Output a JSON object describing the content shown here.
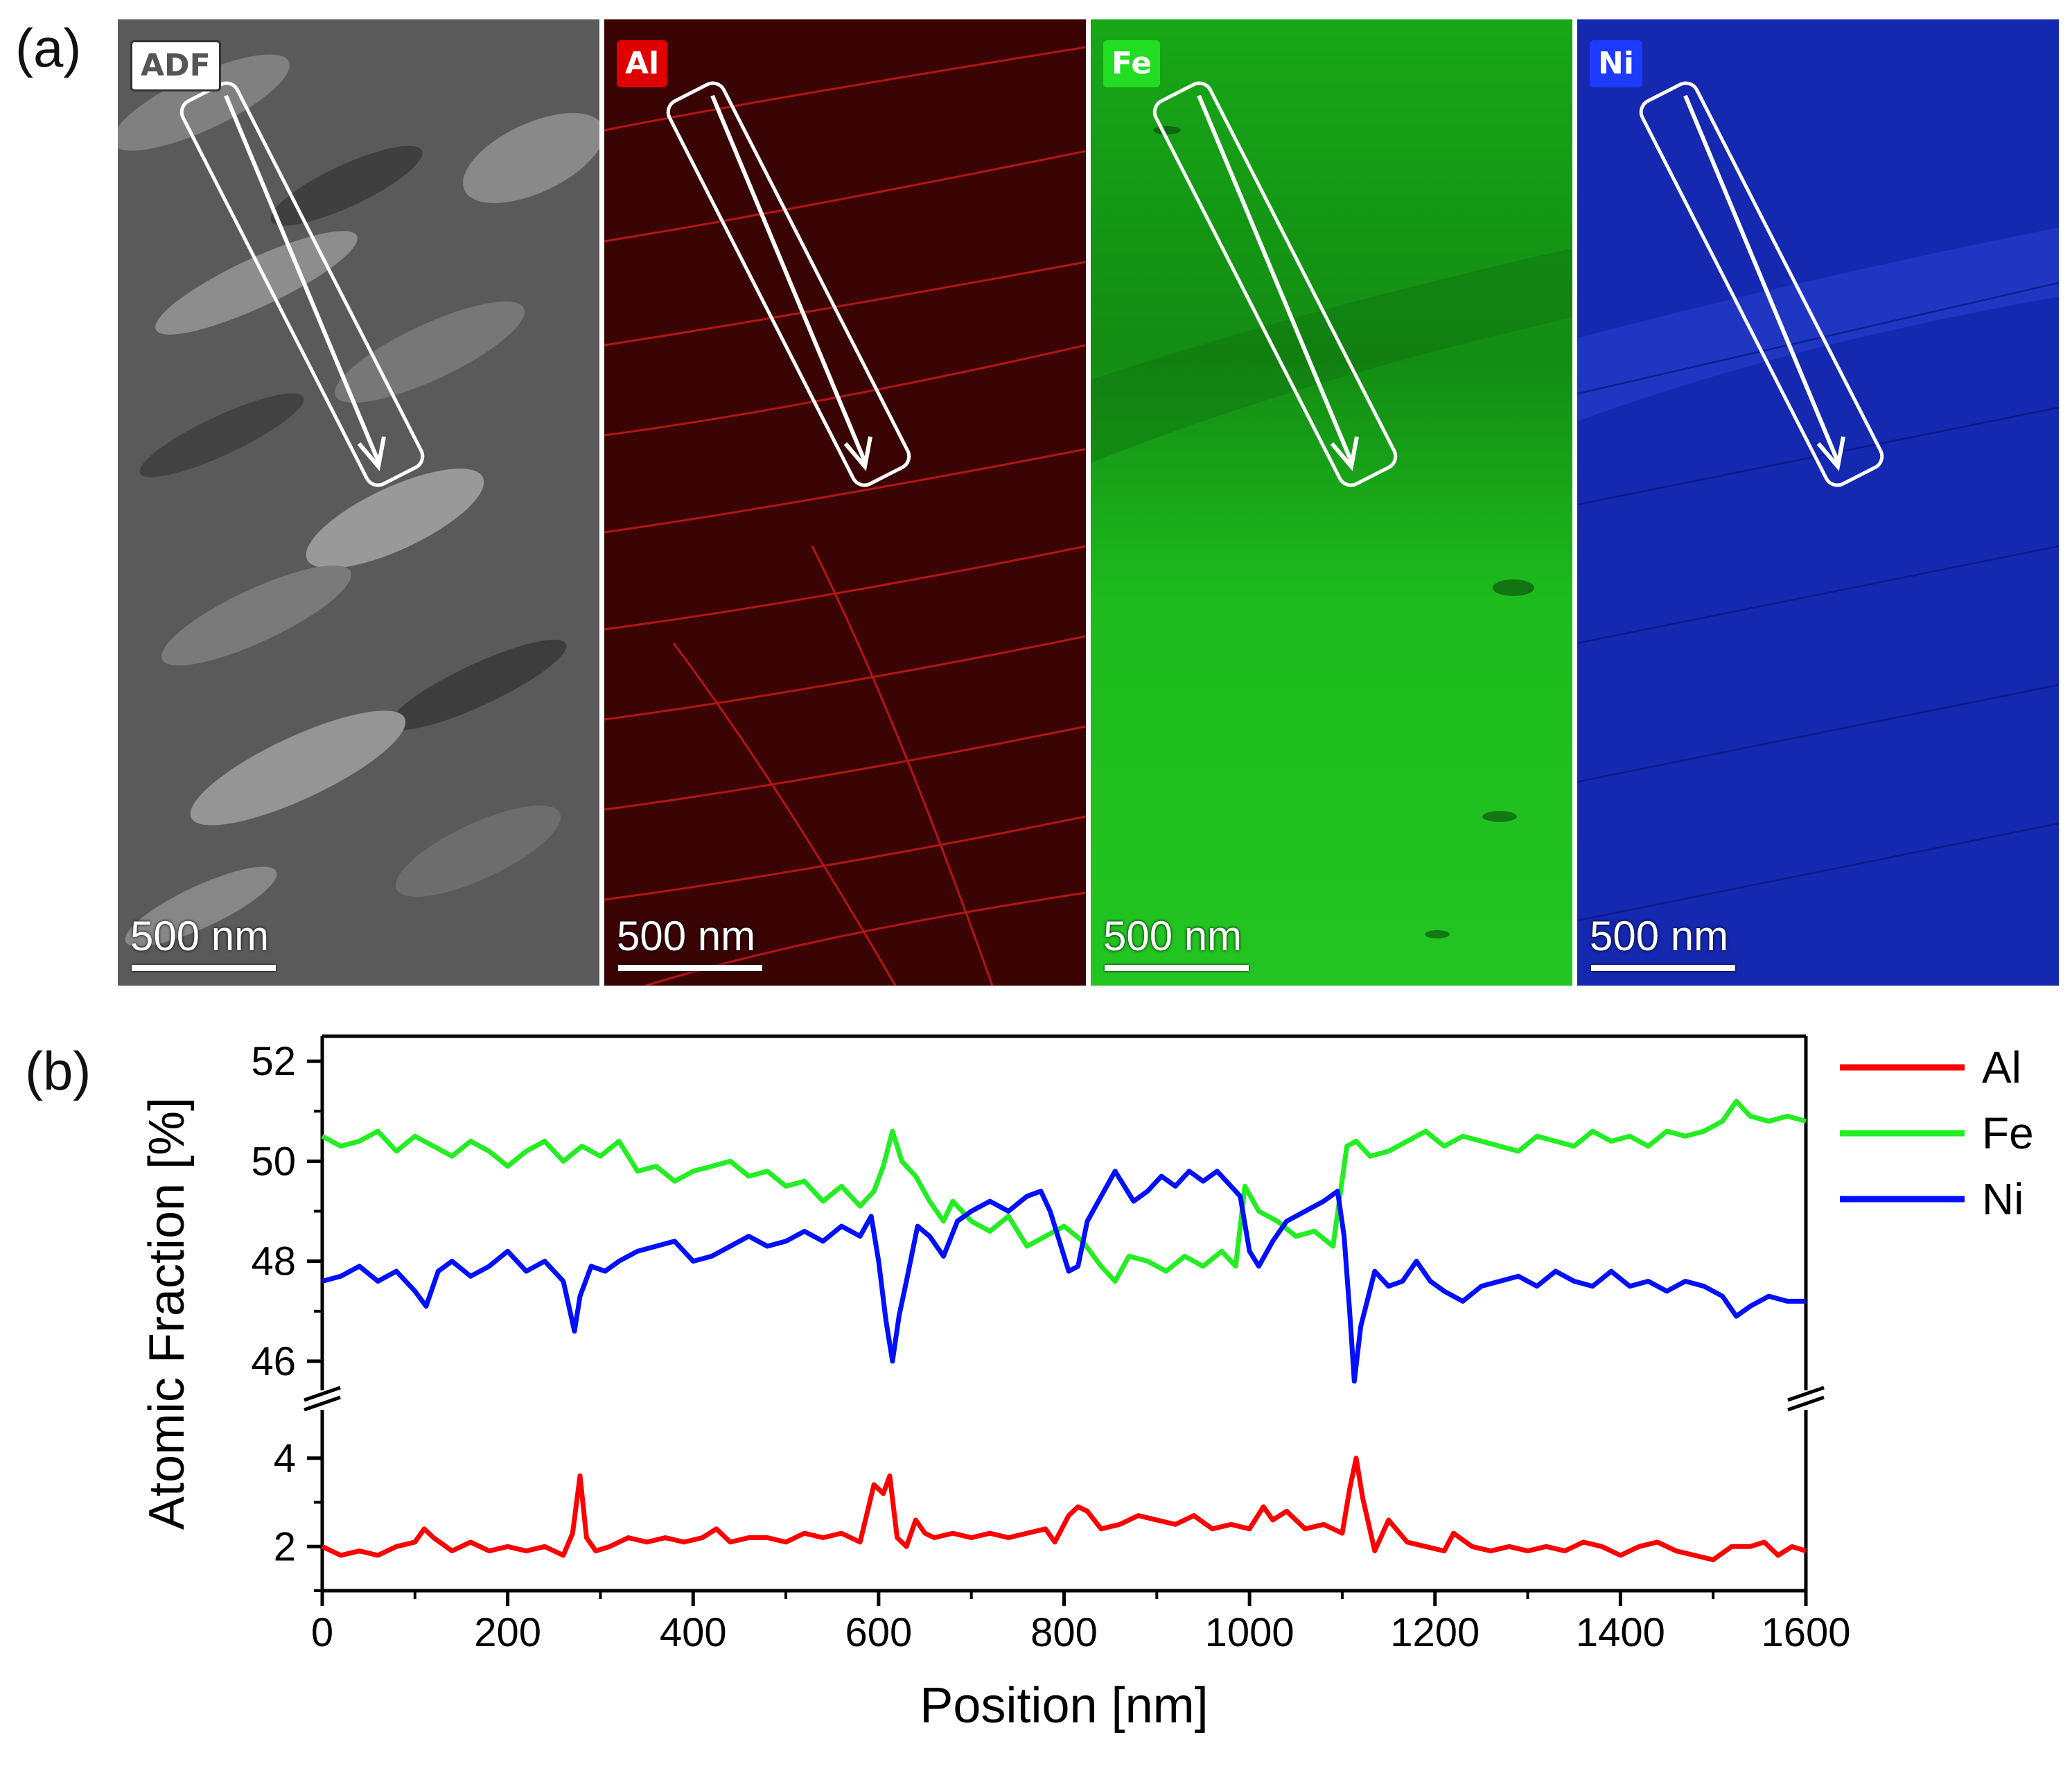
{
  "figure": {
    "panel_a_label": "(a)",
    "panel_b_label": "(b)"
  },
  "maps": [
    {
      "badge": "ADF",
      "scale": "500 nm",
      "color": "#b8b8b8",
      "bg": "#555555"
    },
    {
      "badge": "Al",
      "scale": "500 nm",
      "color": "#ff2020",
      "bg": "#3a0000"
    },
    {
      "badge": "Fe",
      "scale": "500 nm",
      "color": "#22ff22",
      "bg": "#1a9a1a"
    },
    {
      "badge": "Ni",
      "scale": "500 nm",
      "color": "#3050ff",
      "bg": "#1428b0"
    }
  ],
  "chart_data": {
    "type": "line",
    "title": "",
    "xlabel": "Position [nm]",
    "ylabel": "Atomic Fraction [%]",
    "xlim": [
      0,
      1600
    ],
    "xticks": [
      "0",
      "200",
      "400",
      "600",
      "800",
      "1000",
      "1200",
      "1400",
      "1600"
    ],
    "upper_ylim": [
      45.5,
      52.5
    ],
    "upper_yticks": [
      "46",
      "48",
      "50",
      "52"
    ],
    "lower_ylim": [
      1,
      5
    ],
    "lower_yticks": [
      "2",
      "4"
    ],
    "legend_position": "right",
    "series": [
      {
        "name": "Al",
        "color": "#ff0000",
        "axis": "lower",
        "x": [
          0,
          20,
          40,
          60,
          80,
          100,
          110,
          120,
          140,
          160,
          180,
          200,
          220,
          240,
          260,
          270,
          278,
          285,
          295,
          310,
          330,
          350,
          370,
          390,
          410,
          425,
          440,
          460,
          480,
          500,
          520,
          540,
          560,
          580,
          595,
          605,
          612,
          620,
          630,
          640,
          650,
          660,
          680,
          700,
          720,
          740,
          760,
          780,
          790,
          805,
          815,
          825,
          840,
          860,
          880,
          900,
          920,
          940,
          960,
          980,
          1000,
          1015,
          1025,
          1040,
          1060,
          1080,
          1100,
          1108,
          1115,
          1122,
          1135,
          1150,
          1170,
          1190,
          1210,
          1220,
          1240,
          1260,
          1280,
          1300,
          1320,
          1340,
          1360,
          1380,
          1400,
          1420,
          1440,
          1460,
          1480,
          1500,
          1520,
          1540,
          1555,
          1570,
          1585,
          1600
        ],
        "y": [
          2.0,
          1.8,
          1.9,
          1.8,
          2.0,
          2.1,
          2.4,
          2.2,
          1.9,
          2.1,
          1.9,
          2.0,
          1.9,
          2.0,
          1.8,
          2.3,
          3.6,
          2.2,
          1.9,
          2.0,
          2.2,
          2.1,
          2.2,
          2.1,
          2.2,
          2.4,
          2.1,
          2.2,
          2.2,
          2.1,
          2.3,
          2.2,
          2.3,
          2.1,
          3.4,
          3.2,
          3.6,
          2.2,
          2.0,
          2.6,
          2.3,
          2.2,
          2.3,
          2.2,
          2.3,
          2.2,
          2.3,
          2.4,
          2.1,
          2.7,
          2.9,
          2.8,
          2.4,
          2.5,
          2.7,
          2.6,
          2.5,
          2.7,
          2.4,
          2.5,
          2.4,
          2.9,
          2.6,
          2.8,
          2.4,
          2.5,
          2.3,
          3.3,
          4.0,
          3.1,
          1.9,
          2.6,
          2.1,
          2.0,
          1.9,
          2.3,
          2.0,
          1.9,
          2.0,
          1.9,
          2.0,
          1.9,
          2.1,
          2.0,
          1.8,
          2.0,
          2.1,
          1.9,
          1.8,
          1.7,
          2.0,
          2.0,
          2.1,
          1.8,
          2.0,
          1.9
        ]
      },
      {
        "name": "Fe",
        "color": "#22ee22",
        "axis": "upper",
        "x": [
          0,
          20,
          40,
          60,
          80,
          100,
          120,
          140,
          160,
          180,
          200,
          220,
          240,
          260,
          280,
          300,
          320,
          340,
          360,
          380,
          400,
          420,
          440,
          460,
          480,
          500,
          520,
          540,
          560,
          580,
          595,
          605,
          615,
          625,
          640,
          655,
          670,
          680,
          700,
          720,
          740,
          760,
          780,
          800,
          820,
          840,
          855,
          870,
          890,
          910,
          930,
          950,
          970,
          985,
          995,
          1010,
          1030,
          1050,
          1070,
          1090,
          1105,
          1115,
          1130,
          1150,
          1170,
          1190,
          1210,
          1230,
          1250,
          1270,
          1290,
          1310,
          1330,
          1350,
          1370,
          1390,
          1410,
          1430,
          1450,
          1470,
          1490,
          1510,
          1525,
          1540,
          1560,
          1580,
          1600
        ],
        "y": [
          50.5,
          50.3,
          50.4,
          50.6,
          50.2,
          50.5,
          50.3,
          50.1,
          50.4,
          50.2,
          49.9,
          50.2,
          50.4,
          50.0,
          50.3,
          50.1,
          50.4,
          49.8,
          49.9,
          49.6,
          49.8,
          49.9,
          50.0,
          49.7,
          49.8,
          49.5,
          49.6,
          49.2,
          49.5,
          49.1,
          49.4,
          49.9,
          50.6,
          50.0,
          49.7,
          49.2,
          48.8,
          49.2,
          48.8,
          48.6,
          48.9,
          48.3,
          48.5,
          48.7,
          48.4,
          47.9,
          47.6,
          48.1,
          48.0,
          47.8,
          48.1,
          47.9,
          48.2,
          47.9,
          49.5,
          49.0,
          48.8,
          48.5,
          48.6,
          48.3,
          50.3,
          50.4,
          50.1,
          50.2,
          50.4,
          50.6,
          50.3,
          50.5,
          50.4,
          50.3,
          50.2,
          50.5,
          50.4,
          50.3,
          50.6,
          50.4,
          50.5,
          50.3,
          50.6,
          50.5,
          50.6,
          50.8,
          51.2,
          50.9,
          50.8,
          50.9,
          50.8
        ]
      },
      {
        "name": "Ni",
        "color": "#0010ff",
        "axis": "upper",
        "x": [
          0,
          20,
          40,
          60,
          80,
          100,
          112,
          125,
          140,
          160,
          180,
          200,
          220,
          240,
          260,
          272,
          278,
          290,
          305,
          320,
          340,
          360,
          380,
          400,
          420,
          440,
          460,
          480,
          500,
          520,
          540,
          560,
          580,
          592,
          600,
          608,
          615,
          622,
          630,
          642,
          655,
          670,
          685,
          700,
          720,
          740,
          760,
          775,
          785,
          795,
          805,
          815,
          825,
          840,
          855,
          865,
          875,
          890,
          905,
          920,
          935,
          950,
          965,
          980,
          990,
          1000,
          1010,
          1025,
          1040,
          1060,
          1080,
          1095,
          1102,
          1108,
          1113,
          1120,
          1135,
          1150,
          1165,
          1180,
          1195,
          1210,
          1230,
          1250,
          1270,
          1290,
          1310,
          1330,
          1350,
          1370,
          1390,
          1410,
          1430,
          1450,
          1470,
          1490,
          1510,
          1525,
          1540,
          1560,
          1580,
          1600
        ],
        "y": [
          47.6,
          47.7,
          47.9,
          47.6,
          47.8,
          47.4,
          47.1,
          47.8,
          48.0,
          47.7,
          47.9,
          48.2,
          47.8,
          48.0,
          47.6,
          46.6,
          47.3,
          47.9,
          47.8,
          48.0,
          48.2,
          48.3,
          48.4,
          48.0,
          48.1,
          48.3,
          48.5,
          48.3,
          48.4,
          48.6,
          48.4,
          48.7,
          48.5,
          48.9,
          48.0,
          46.8,
          46.0,
          46.9,
          47.6,
          48.7,
          48.5,
          48.1,
          48.8,
          49.0,
          49.2,
          49.0,
          49.3,
          49.4,
          49.0,
          48.4,
          47.8,
          47.9,
          48.8,
          49.3,
          49.8,
          49.5,
          49.2,
          49.4,
          49.7,
          49.5,
          49.8,
          49.6,
          49.8,
          49.5,
          49.3,
          48.2,
          47.9,
          48.4,
          48.8,
          49.0,
          49.2,
          49.4,
          48.5,
          47.0,
          45.6,
          46.7,
          47.8,
          47.5,
          47.6,
          48.0,
          47.6,
          47.4,
          47.2,
          47.5,
          47.6,
          47.7,
          47.5,
          47.8,
          47.6,
          47.5,
          47.8,
          47.5,
          47.6,
          47.4,
          47.6,
          47.5,
          47.3,
          46.9,
          47.1,
          47.3,
          47.2,
          47.2
        ]
      }
    ]
  }
}
